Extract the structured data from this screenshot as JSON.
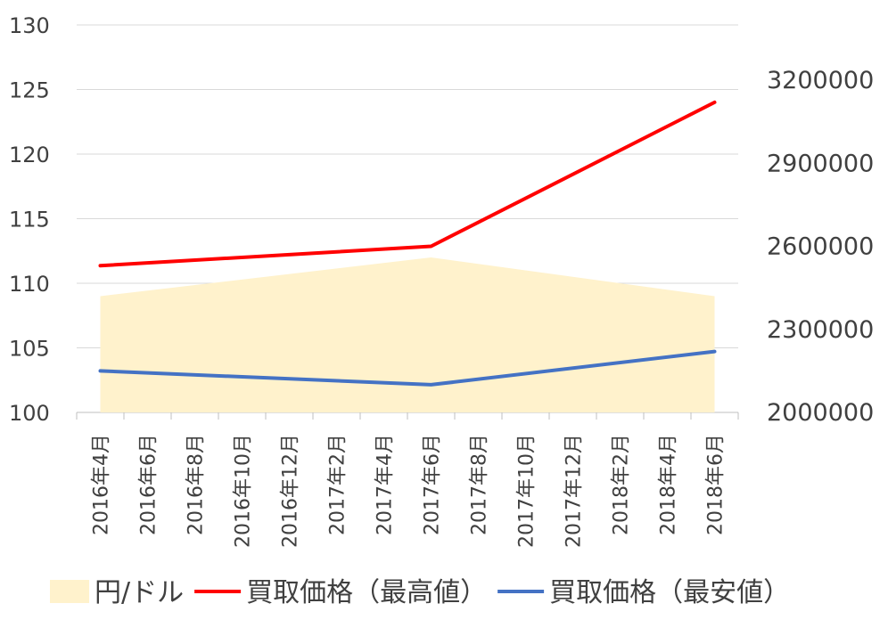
{
  "chart_data": {
    "type": "line",
    "categories": [
      "2016年4月",
      "2016年6月",
      "2016年8月",
      "2016年10月",
      "2016年12月",
      "2017年2月",
      "2017年4月",
      "2017年6月",
      "2017年8月",
      "2017年10月",
      "2017年12月",
      "2018年2月",
      "2018年4月",
      "2018年6月"
    ],
    "y_left": {
      "min": 100,
      "max": 130,
      "ticks": [
        "100",
        "105",
        "110",
        "115",
        "120",
        "125",
        "130"
      ]
    },
    "y_right": {
      "min": 2000000,
      "max": 3200000,
      "ticks": [
        "2000000",
        "2300000",
        "2600000",
        "2900000",
        "3200000"
      ]
    },
    "grid": "horizontal",
    "legend_position": "bottom",
    "series": [
      {
        "name": "円/ドル",
        "kind": "area",
        "axis": "left",
        "color": "#FFF2CC",
        "points": [
          {
            "x": "2016年4月",
            "y": 109
          },
          {
            "x": "2017年6月",
            "y": 112
          },
          {
            "x": "2018年6月",
            "y": 109
          }
        ]
      },
      {
        "name": "買取価格（最高値）",
        "kind": "line",
        "axis": "right",
        "color": "#FF0000",
        "points": [
          {
            "x": "2016年4月",
            "y": 2530000
          },
          {
            "x": "2017年6月",
            "y": 2600000
          },
          {
            "x": "2018年6月",
            "y": 3120000
          }
        ]
      },
      {
        "name": "買取価格（最安値）",
        "kind": "line",
        "axis": "right",
        "color": "#4472C4",
        "points": [
          {
            "x": "2016年4月",
            "y": 2150000
          },
          {
            "x": "2017年6月",
            "y": 2100000
          },
          {
            "x": "2018年6月",
            "y": 2220000
          }
        ]
      }
    ]
  }
}
